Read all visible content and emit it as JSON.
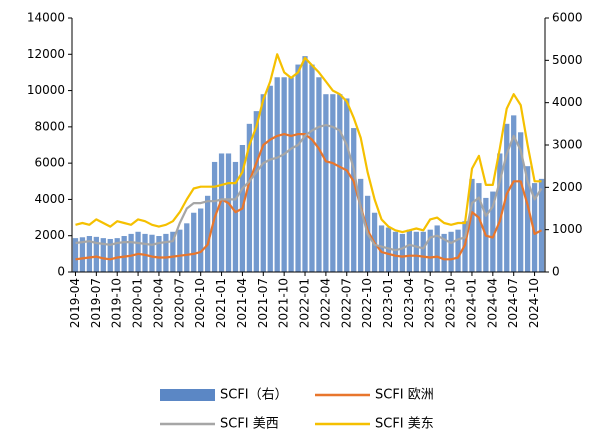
{
  "chart_data": {
    "type": "bar_line",
    "categories": [
      "2019-04",
      null,
      null,
      "2019-07",
      null,
      null,
      "2019-10",
      null,
      null,
      "2020-01",
      null,
      null,
      "2020-04",
      null,
      null,
      "2020-07",
      null,
      null,
      "2020-10",
      null,
      null,
      "2021-01",
      null,
      null,
      "2021-04",
      null,
      null,
      "2021-07",
      null,
      null,
      "2021-10",
      null,
      null,
      "2022-01",
      null,
      null,
      "2022-04",
      null,
      null,
      "2022-07",
      null,
      null,
      "2022-10",
      null,
      null,
      "2023-01",
      null,
      null,
      "2023-04",
      null,
      null,
      "2023-07",
      null,
      null,
      "2023-10",
      null,
      null,
      "2024-01",
      null,
      null,
      "2024-04",
      null,
      null,
      "2024-07",
      null,
      null,
      "2024-10",
      null
    ],
    "series": [
      {
        "name": "SCFI（右）",
        "type": "bar",
        "axis": "y2",
        "color": "#5b87c5",
        "values": [
          800,
          820,
          850,
          830,
          800,
          780,
          800,
          850,
          900,
          950,
          900,
          880,
          850,
          900,
          950,
          1000,
          1150,
          1400,
          1500,
          1800,
          2600,
          2800,
          2800,
          2600,
          3000,
          3500,
          3800,
          4200,
          4400,
          4600,
          4600,
          4600,
          4900,
          5100,
          4900,
          4600,
          4200,
          4200,
          4200,
          4100,
          3400,
          2200,
          1800,
          1400,
          1100,
          1050,
          950,
          900,
          1000,
          950,
          950,
          1000,
          1100,
          900,
          950,
          1000,
          1200,
          2200,
          2100,
          1750,
          1900,
          2800,
          3500,
          3700,
          3300,
          2500,
          2100,
          2200
        ]
      },
      {
        "name": "SCFI 欧洲",
        "type": "line",
        "color": "#e8762c",
        "values": [
          700,
          750,
          800,
          850,
          750,
          700,
          800,
          850,
          900,
          1000,
          950,
          850,
          800,
          800,
          850,
          900,
          950,
          1000,
          1100,
          1500,
          3000,
          4000,
          3800,
          3300,
          3500,
          5000,
          6000,
          7000,
          7300,
          7500,
          7600,
          7500,
          7600,
          7600,
          7300,
          6800,
          6100,
          6000,
          5800,
          5600,
          5000,
          3600,
          2300,
          1600,
          1100,
          1000,
          900,
          850,
          900,
          900,
          850,
          800,
          850,
          700,
          700,
          800,
          1500,
          3300,
          3000,
          2000,
          1900,
          2800,
          4300,
          5000,
          5000,
          3700,
          2100,
          2300
        ]
      },
      {
        "name": "SCFI 美西",
        "type": "line",
        "color": "#a6a6a6",
        "values": [
          1600,
          1650,
          1700,
          1600,
          1550,
          1500,
          1600,
          1650,
          1650,
          1600,
          1550,
          1500,
          1600,
          1650,
          1700,
          2700,
          3500,
          3800,
          3800,
          3900,
          3900,
          4000,
          4000,
          4000,
          4600,
          5000,
          5500,
          6000,
          6200,
          6300,
          6500,
          6800,
          7000,
          7500,
          7800,
          8000,
          8100,
          8000,
          7800,
          7000,
          5700,
          3500,
          2100,
          1500,
          1400,
          1300,
          1200,
          1300,
          1500,
          1400,
          1300,
          1900,
          2000,
          1800,
          1600,
          1800,
          1900,
          3800,
          4100,
          3100,
          3600,
          5000,
          6500,
          7500,
          6700,
          5000,
          4000,
          4600
        ]
      },
      {
        "name": "SCFI 美东",
        "type": "line",
        "color": "#f5c000",
        "values": [
          2600,
          2700,
          2600,
          2900,
          2700,
          2500,
          2800,
          2700,
          2600,
          2900,
          2800,
          2600,
          2500,
          2600,
          2800,
          3300,
          4000,
          4600,
          4700,
          4700,
          4700,
          4800,
          4900,
          4900,
          5500,
          7000,
          8000,
          9500,
          10500,
          12000,
          11000,
          10700,
          11000,
          11800,
          11400,
          11000,
          10500,
          10000,
          9800,
          9400,
          8500,
          7400,
          5500,
          4000,
          2900,
          2500,
          2300,
          2200,
          2300,
          2400,
          2300,
          2900,
          3000,
          2700,
          2600,
          2700,
          2700,
          5700,
          6400,
          4800,
          4800,
          6800,
          9000,
          9800,
          9200,
          7000,
          5000,
          5000
        ]
      }
    ],
    "ylim": [
      0,
      14000
    ],
    "yticks": [
      0,
      2000,
      4000,
      6000,
      8000,
      10000,
      12000,
      14000
    ],
    "y2lim": [
      0,
      6000
    ],
    "y2ticks": [
      0,
      1000,
      2000,
      3000,
      4000,
      5000,
      6000
    ],
    "legend": "bottom"
  }
}
